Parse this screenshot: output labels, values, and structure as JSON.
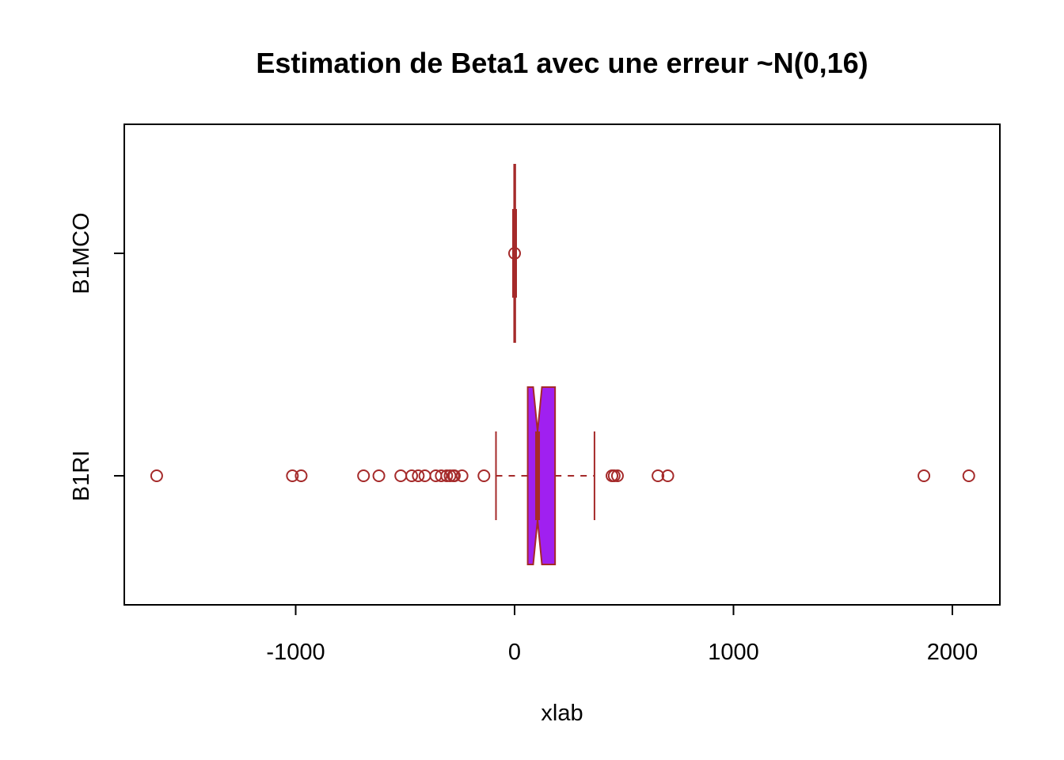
{
  "chart_data": {
    "type": "boxplot",
    "orientation": "horizontal",
    "title": "Estimation de Beta1 avec une erreur ~N(0,16)",
    "xlabel": "xlab",
    "ylabel": "",
    "xlim": [
      -1800,
      2200
    ],
    "x_ticks": [
      -1000,
      0,
      1000,
      2000
    ],
    "x_tick_labels": [
      "-1000",
      "0",
      "1000",
      "2000"
    ],
    "categories": [
      "B1RI",
      "B1MCO"
    ],
    "colors": {
      "box_fill": "#a020f0",
      "border": "#a52a2a",
      "frame": "#000000"
    },
    "notch": true,
    "series": [
      {
        "name": "B1RI",
        "whisker_low": -85,
        "q1": 60,
        "notch_low": 85,
        "median": 105,
        "notch_high": 125,
        "q3": 185,
        "whisker_high": 365,
        "outliers": [
          -1635,
          -1015,
          -975,
          -690,
          -620,
          -520,
          -470,
          -440,
          -410,
          -360,
          -335,
          -310,
          -295,
          -280,
          -275,
          -240,
          -140,
          445,
          455,
          470,
          655,
          700,
          1870,
          2075
        ]
      },
      {
        "name": "B1MCO",
        "whisker_low": -5,
        "q1": -2,
        "notch_low": -1,
        "median": 0,
        "notch_high": 1,
        "q3": 3,
        "whisker_high": 5,
        "outliers": [
          0
        ]
      }
    ]
  }
}
